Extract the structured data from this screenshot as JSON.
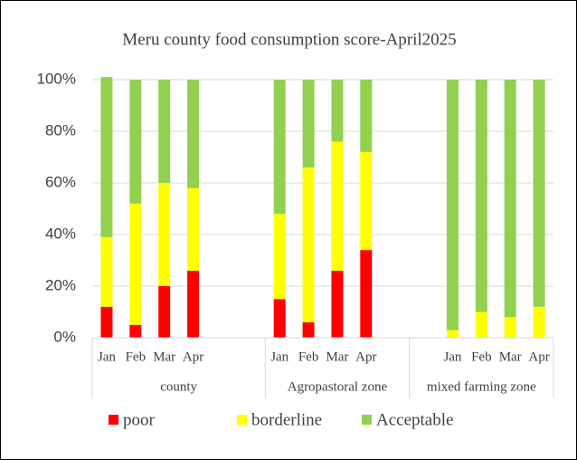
{
  "chart_data": {
    "type": "stacked_bar",
    "title": "Meru county food consumption score-April2025",
    "groups": [
      {
        "name": "county",
        "categories": [
          "Jan",
          "Feb",
          "Mar",
          "Apr",
          null,
          null
        ]
      },
      {
        "name": "Agropastoral zone",
        "categories": [
          "Jan",
          "Feb",
          "Mar",
          "Apr",
          null
        ]
      },
      {
        "name": "mixed farming zone",
        "categories": [
          null,
          "Jan",
          "Feb",
          "Mar",
          "Apr"
        ]
      }
    ],
    "series": [
      {
        "name": "poor",
        "color": "#ff0000",
        "values": [
          12,
          5,
          20,
          26,
          null,
          null,
          15,
          6,
          26,
          34,
          null,
          null,
          0,
          0,
          0,
          0
        ]
      },
      {
        "name": "borderline",
        "color": "#ffff00",
        "values": [
          27,
          47,
          40,
          32,
          null,
          null,
          33,
          60,
          50,
          38,
          null,
          null,
          3,
          10,
          8,
          12
        ]
      },
      {
        "name": "Acceptable",
        "color": "#92d050",
        "values": [
          62,
          48,
          40,
          42,
          null,
          null,
          52,
          34,
          24,
          28,
          null,
          null,
          97,
          90,
          92,
          88
        ]
      }
    ],
    "ylim": [
      0,
      100
    ],
    "yticks": [
      {
        "value": 0,
        "label": "0%"
      },
      {
        "value": 20,
        "label": "20%"
      },
      {
        "value": 40,
        "label": "40%"
      },
      {
        "value": 60,
        "label": "60%"
      },
      {
        "value": 80,
        "label": "80%"
      },
      {
        "value": 100,
        "label": "100%"
      }
    ],
    "grid": true,
    "legend": "bottom"
  }
}
